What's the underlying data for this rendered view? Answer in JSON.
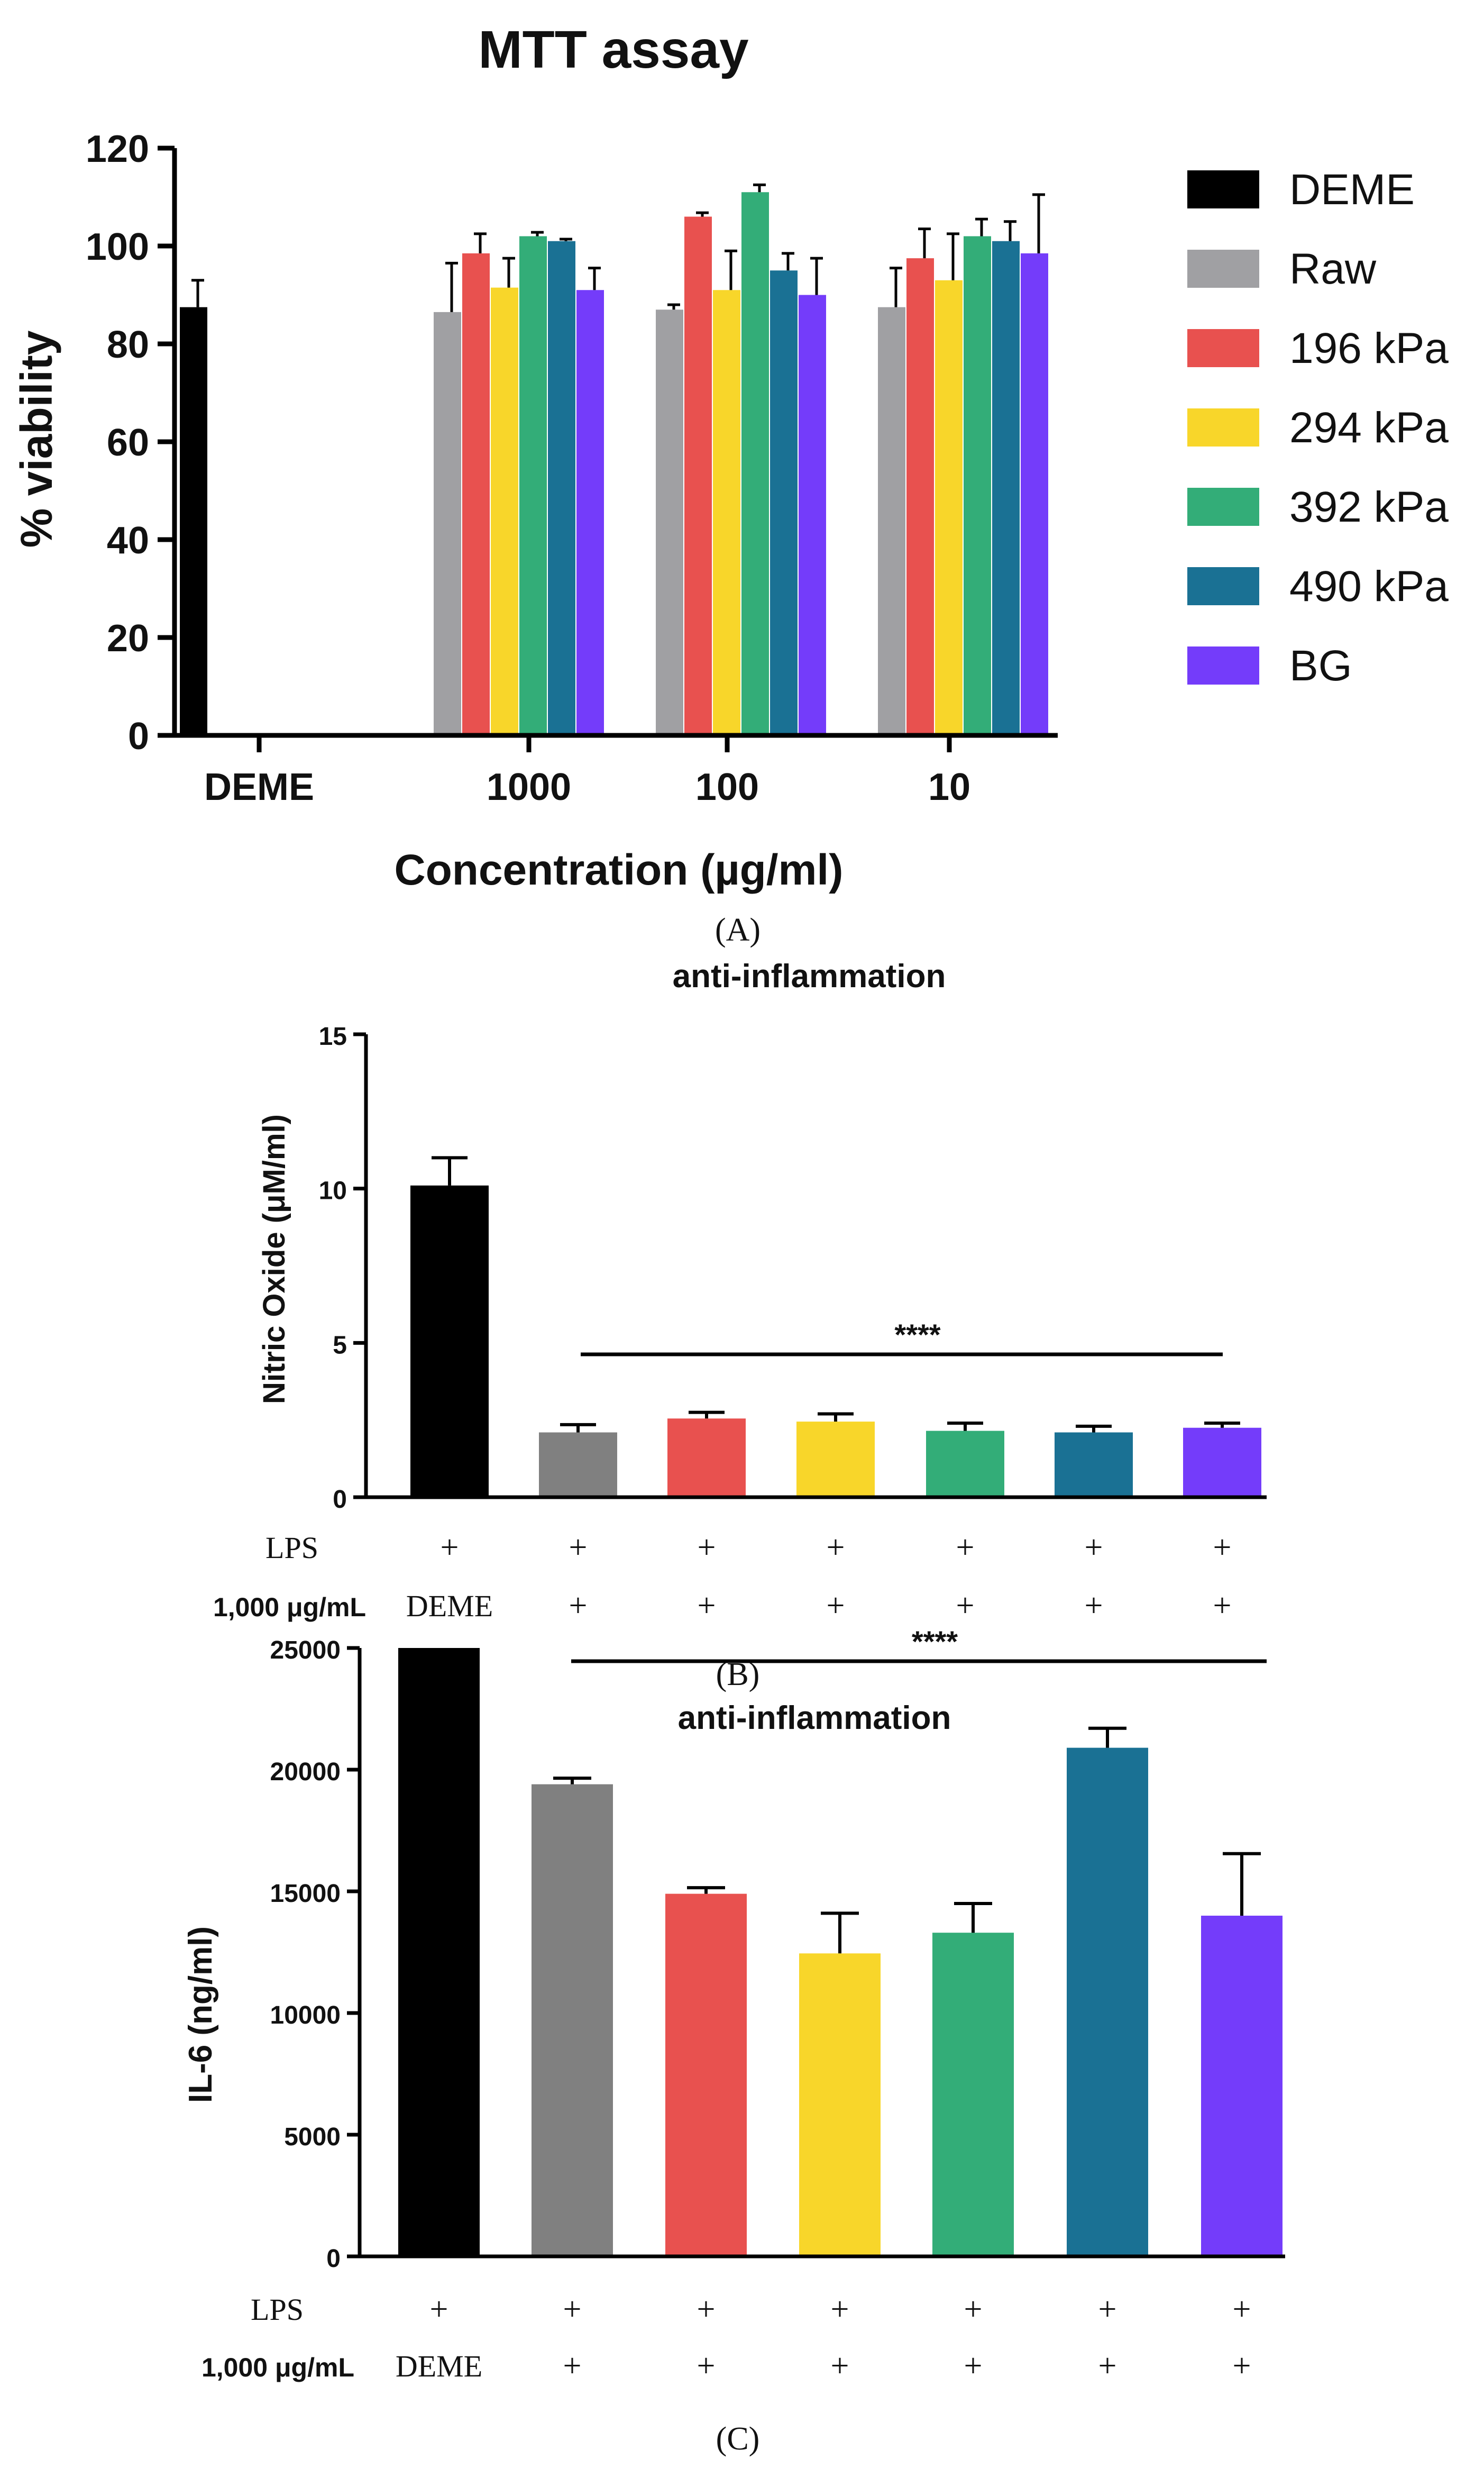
{
  "colors": {
    "DEME": "#000000",
    "Raw": "#A0A0A3",
    "196 kPa": "#E8514F",
    "294 kPa": "#F8D62A",
    "392 kPa": "#33AD78",
    "490 kPa": "#1A7194",
    "BG": "#743CFA",
    "Raw_B": "#808080"
  },
  "chart_data": [
    {
      "type": "bar",
      "panel_label": "(A)",
      "title": "MTT assay",
      "xlabel": "Concentration (µg/ml)",
      "ylabel": "% viability",
      "ylim": [
        0,
        120
      ],
      "yticks": [
        "0",
        "20",
        "40",
        "60",
        "80",
        "100",
        "120"
      ],
      "categories": [
        "DEME",
        "1000",
        "100",
        "10"
      ],
      "legend": {
        "position": "right",
        "entries": [
          "DEME",
          "Raw",
          "196 kPa",
          "294 kPa",
          "392 kPa",
          "490 kPa",
          "BG"
        ]
      },
      "series": [
        {
          "name": "DEME",
          "values": [
            87.5,
            null,
            null,
            null
          ],
          "errors": [
            5.5,
            null,
            null,
            null
          ]
        },
        {
          "name": "Raw",
          "values": [
            null,
            86.5,
            87,
            87.5
          ],
          "errors": [
            null,
            10,
            1,
            8
          ]
        },
        {
          "name": "196 kPa",
          "values": [
            null,
            98.5,
            106,
            97.5
          ],
          "errors": [
            null,
            4,
            0.8,
            6
          ]
        },
        {
          "name": "294 kPa",
          "values": [
            null,
            91.5,
            91,
            93
          ],
          "errors": [
            null,
            6,
            8,
            9.5
          ]
        },
        {
          "name": "392 kPa",
          "values": [
            null,
            102,
            111,
            102
          ],
          "errors": [
            null,
            0.8,
            1.5,
            3.5
          ]
        },
        {
          "name": "490 kPa",
          "values": [
            null,
            101,
            95,
            101
          ],
          "errors": [
            null,
            0.4,
            3.5,
            4
          ]
        },
        {
          "name": "BG",
          "values": [
            null,
            91,
            90,
            98.5
          ],
          "errors": [
            null,
            4.5,
            7.5,
            12
          ]
        }
      ]
    },
    {
      "type": "bar",
      "panel_label": "(B)",
      "title": "anti-inflammation",
      "ylabel": "Nitric Oxide (μM/ml)",
      "ylim": [
        0,
        15
      ],
      "yticks": [
        "0",
        "5",
        "10",
        "15"
      ],
      "values": [
        10.1,
        2.1,
        2.55,
        2.45,
        2.15,
        2.1,
        2.25
      ],
      "errors": [
        0.9,
        0.25,
        0.2,
        0.25,
        0.25,
        0.2,
        0.15
      ],
      "bar_colors": [
        "DEME",
        "Raw_B",
        "196 kPa",
        "294 kPa",
        "392 kPa",
        "490 kPa",
        "BG"
      ],
      "significance": "****",
      "row_labels": [
        "LPS",
        "1,000 μg/mL"
      ],
      "lps_row": [
        "+",
        "+",
        "+",
        "+",
        "+",
        "+",
        "+"
      ],
      "conc_row": [
        "DEME",
        "+",
        "+",
        "+",
        "+",
        "+",
        "+"
      ]
    },
    {
      "type": "bar",
      "panel_label": "(C)",
      "title": "anti-inflammation",
      "ylabel": "IL-6 (ng/ml)",
      "ylim": [
        0,
        25000
      ],
      "yticks": [
        "0",
        "5000",
        "10000",
        "15000",
        "20000",
        "25000"
      ],
      "values": [
        25000,
        19400,
        14900,
        12450,
        13300,
        20900,
        14000
      ],
      "errors": [
        0,
        250,
        250,
        1650,
        1200,
        800,
        2550
      ],
      "bar_colors": [
        "DEME",
        "Raw_B",
        "196 kPa",
        "294 kPa",
        "392 kPa",
        "490 kPa",
        "BG"
      ],
      "significance": "****",
      "row_labels": [
        "LPS",
        "1,000 μg/mL"
      ],
      "lps_row": [
        "+",
        "+",
        "+",
        "+",
        "+",
        "+",
        "+"
      ],
      "conc_row": [
        "DEME",
        "+",
        "+",
        "+",
        "+",
        "+",
        "+"
      ]
    }
  ]
}
